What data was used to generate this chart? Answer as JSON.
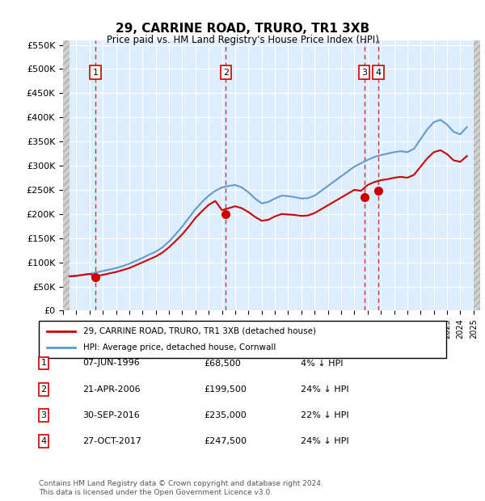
{
  "title": "29, CARRINE ROAD, TRURO, TR1 3XB",
  "subtitle": "Price paid vs. HM Land Registry's House Price Index (HPI)",
  "ylabel": "",
  "ylim": [
    0,
    560000
  ],
  "yticks": [
    0,
    50000,
    100000,
    150000,
    200000,
    250000,
    300000,
    350000,
    400000,
    450000,
    500000,
    550000
  ],
  "ytick_labels": [
    "£0",
    "£50K",
    "£100K",
    "£150K",
    "£200K",
    "£250K",
    "£300K",
    "£350K",
    "£400K",
    "£450K",
    "£500K",
    "£550K"
  ],
  "hpi_color": "#6699cc",
  "price_color": "#cc0000",
  "dashed_color": "#cc0000",
  "background_plot": "#ddeeff",
  "background_hatch": "#cccccc",
  "grid_color": "#ffffff",
  "legend_line1": "29, CARRINE ROAD, TRURO, TR1 3XB (detached house)",
  "legend_line2": "HPI: Average price, detached house, Cornwall",
  "transactions": [
    {
      "num": 1,
      "date_str": "07-JUN-1996",
      "year": 1996.44,
      "price": 68500,
      "pct": "4% ↓ HPI"
    },
    {
      "num": 2,
      "date_str": "21-APR-2006",
      "year": 2006.3,
      "price": 199500,
      "pct": "24% ↓ HPI"
    },
    {
      "num": 3,
      "date_str": "30-SEP-2016",
      "year": 2016.75,
      "price": 235000,
      "pct": "22% ↓ HPI"
    },
    {
      "num": 4,
      "date_str": "27-OCT-2017",
      "year": 2017.82,
      "price": 247500,
      "pct": "24% ↓ HPI"
    }
  ],
  "footer": "Contains HM Land Registry data © Crown copyright and database right 2024.\nThis data is licensed under the Open Government Licence v3.0.",
  "hpi_data_years": [
    1994.5,
    1995,
    1995.5,
    1996,
    1996.5,
    1997,
    1997.5,
    1998,
    1998.5,
    1999,
    1999.5,
    2000,
    2000.5,
    2001,
    2001.5,
    2002,
    2002.5,
    2003,
    2003.5,
    2004,
    2004.5,
    2005,
    2005.5,
    2006,
    2006.5,
    2007,
    2007.5,
    2008,
    2008.5,
    2009,
    2009.5,
    2010,
    2010.5,
    2011,
    2011.5,
    2012,
    2012.5,
    2013,
    2013.5,
    2014,
    2014.5,
    2015,
    2015.5,
    2016,
    2016.5,
    2017,
    2017.5,
    2018,
    2018.5,
    2019,
    2019.5,
    2020,
    2020.5,
    2021,
    2021.5,
    2022,
    2022.5,
    2023,
    2023.5,
    2024,
    2024.5
  ],
  "hpi_data_values": [
    71000,
    72000,
    74000,
    76000,
    79000,
    82000,
    85000,
    88000,
    92000,
    97000,
    103000,
    109000,
    116000,
    122000,
    131000,
    143000,
    158000,
    174000,
    192000,
    210000,
    225000,
    238000,
    248000,
    255000,
    258000,
    260000,
    255000,
    245000,
    232000,
    222000,
    225000,
    232000,
    238000,
    237000,
    235000,
    232000,
    233000,
    238000,
    248000,
    258000,
    268000,
    278000,
    288000,
    298000,
    305000,
    312000,
    318000,
    322000,
    325000,
    328000,
    330000,
    328000,
    335000,
    355000,
    375000,
    390000,
    395000,
    385000,
    370000,
    365000,
    380000
  ],
  "price_data_years": [
    1994.5,
    1995,
    1995.5,
    1996,
    1996.5,
    1997,
    1997.5,
    1998,
    1998.5,
    1999,
    1999.5,
    2000,
    2000.5,
    2001,
    2001.5,
    2002,
    2002.5,
    2003,
    2003.5,
    2004,
    2004.5,
    2005,
    2005.5,
    2006,
    2006.5,
    2007,
    2007.5,
    2008,
    2008.5,
    2009,
    2009.5,
    2010,
    2010.5,
    2011,
    2011.5,
    2012,
    2012.5,
    2013,
    2013.5,
    2014,
    2014.5,
    2015,
    2015.5,
    2016,
    2016.5,
    2017,
    2017.5,
    2018,
    2018.5,
    2019,
    2019.5,
    2020,
    2020.5,
    2021,
    2021.5,
    2022,
    2022.5,
    2023,
    2023.5,
    2024,
    2024.5
  ],
  "price_data_values": [
    71000,
    72000,
    74000,
    76000,
    71200,
    74000,
    77000,
    80000,
    84000,
    88000,
    94000,
    100000,
    106000,
    112000,
    120000,
    131000,
    144000,
    158000,
    174000,
    192000,
    206000,
    219000,
    227000,
    208000,
    212000,
    216000,
    212000,
    204000,
    194000,
    186000,
    188000,
    195000,
    200000,
    199000,
    198000,
    196000,
    197000,
    202000,
    210000,
    218000,
    226000,
    234000,
    242000,
    250000,
    248000,
    260000,
    266000,
    270000,
    272000,
    275000,
    277000,
    275000,
    281000,
    298000,
    315000,
    328000,
    332000,
    324000,
    311000,
    308000,
    320000
  ]
}
